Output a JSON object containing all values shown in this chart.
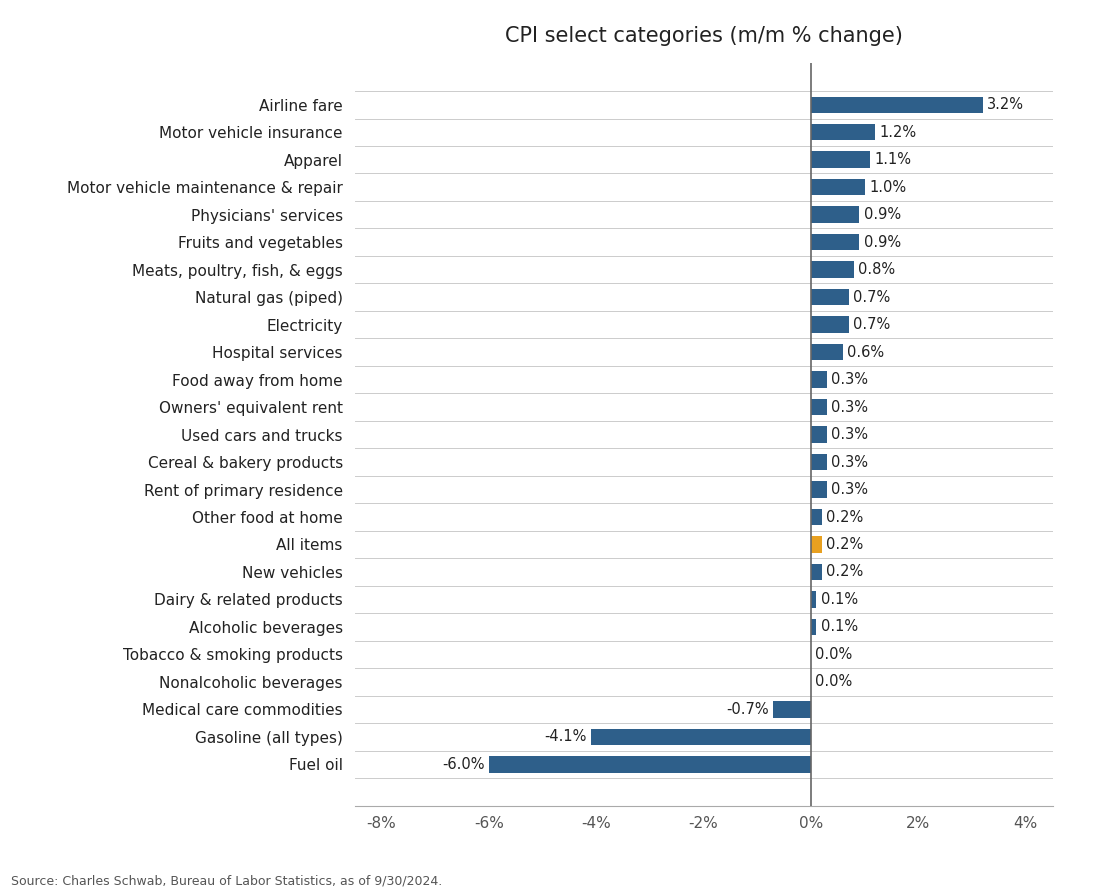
{
  "title": "CPI select categories (m/m % change)",
  "categories": [
    "Airline fare",
    "Motor vehicle insurance",
    "Apparel",
    "Motor vehicle maintenance & repair",
    "Physicians' services",
    "Fruits and vegetables",
    "Meats, poultry, fish, & eggs",
    "Natural gas (piped)",
    "Electricity",
    "Hospital services",
    "Food away from home",
    "Owners' equivalent rent",
    "Used cars and trucks",
    "Cereal & bakery products",
    "Rent of primary residence",
    "Other food at home",
    "All items",
    "New vehicles",
    "Dairy & related products",
    "Alcoholic beverages",
    "Tobacco & smoking products",
    "Nonalcoholic beverages",
    "Medical care commodities",
    "Gasoline (all types)",
    "Fuel oil"
  ],
  "values": [
    3.2,
    1.2,
    1.1,
    1.0,
    0.9,
    0.9,
    0.8,
    0.7,
    0.7,
    0.6,
    0.3,
    0.3,
    0.3,
    0.3,
    0.3,
    0.2,
    0.2,
    0.2,
    0.1,
    0.1,
    0.0,
    0.0,
    -0.7,
    -4.1,
    -6.0
  ],
  "bar_colors": [
    "#2E5F8A",
    "#2E5F8A",
    "#2E5F8A",
    "#2E5F8A",
    "#2E5F8A",
    "#2E5F8A",
    "#2E5F8A",
    "#2E5F8A",
    "#2E5F8A",
    "#2E5F8A",
    "#2E5F8A",
    "#2E5F8A",
    "#2E5F8A",
    "#2E5F8A",
    "#2E5F8A",
    "#2E5F8A",
    "#E8A020",
    "#2E5F8A",
    "#2E5F8A",
    "#2E5F8A",
    "#2E5F8A",
    "#2E5F8A",
    "#2E5F8A",
    "#2E5F8A",
    "#2E5F8A"
  ],
  "xlim": [
    -8.5,
    4.5
  ],
  "xticks": [
    -8,
    -6,
    -4,
    -2,
    0,
    2,
    4
  ],
  "xtick_labels": [
    "-8%",
    "-6%",
    "-4%",
    "-2%",
    "0%",
    "2%",
    "4%"
  ],
  "source_text": "Source: Charles Schwab, Bureau of Labor Statistics, as of 9/30/2024.",
  "background_color": "#FFFFFF",
  "grid_color": "#CCCCCC",
  "title_fontsize": 15,
  "label_fontsize": 11,
  "tick_fontsize": 11,
  "value_fontsize": 10.5
}
